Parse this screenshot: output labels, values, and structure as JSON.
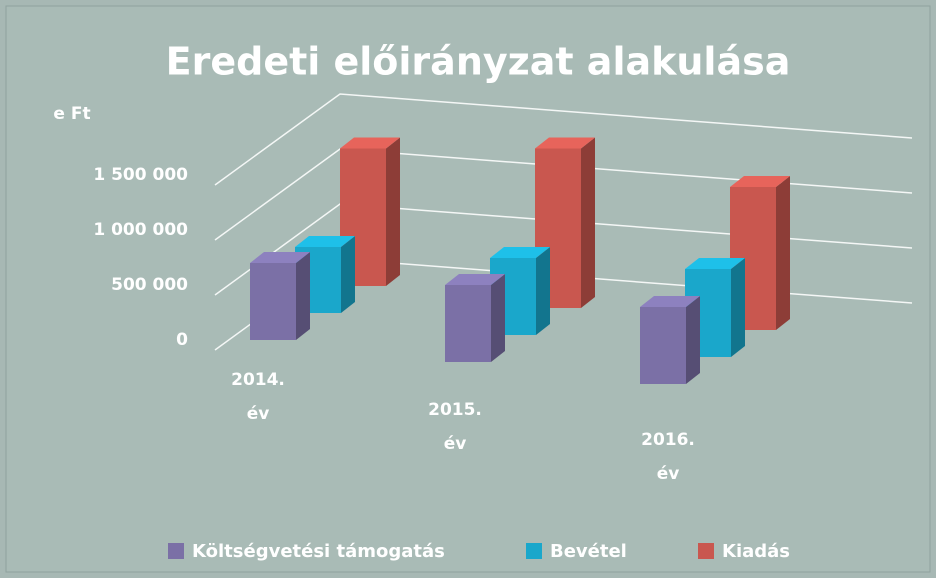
{
  "chart_data": {
    "type": "bar3d",
    "title": "Eredeti előirányzat alakulása",
    "y_axis_label": "e Ft",
    "categories": [
      "2014. év",
      "2015. év",
      "2016. év"
    ],
    "series": [
      {
        "name": "Költségvetési támogatás",
        "color": "#7b70a6",
        "values": [
          700000,
          700000,
          700000
        ]
      },
      {
        "name": "Bevétel",
        "color": "#1aa7cb",
        "values": [
          600000,
          700000,
          800000
        ]
      },
      {
        "name": "Kiadás",
        "color": "#c9574f",
        "values": [
          1250000,
          1450000,
          1300000
        ]
      }
    ],
    "ylim": [
      0,
      1500000
    ],
    "yticks": [
      0,
      {
        "value": 500000,
        "label": "500 000"
      },
      {
        "value": 1000000,
        "label": "1 000 000"
      },
      {
        "value": 1500000,
        "label": "1 500 000"
      }
    ],
    "grid": true,
    "legend": "bottom"
  }
}
